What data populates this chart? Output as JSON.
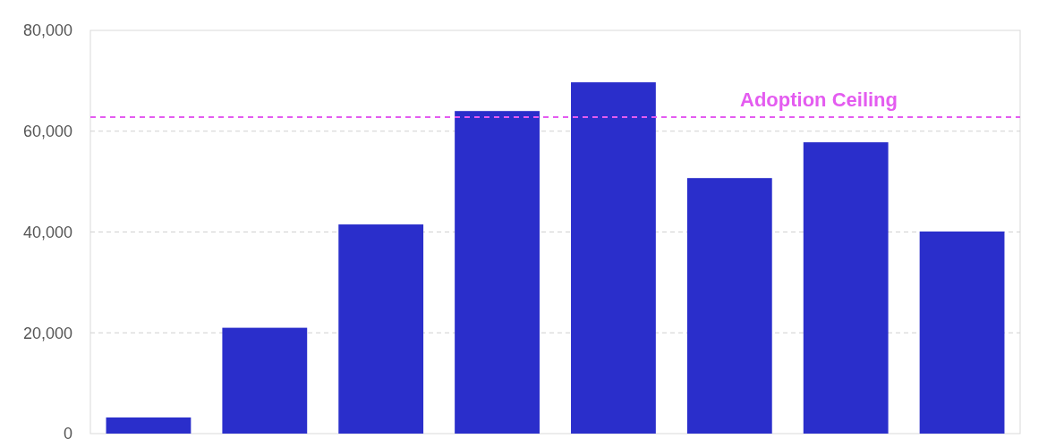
{
  "chart_data": {
    "type": "bar",
    "categories": [
      null,
      null,
      null,
      null,
      null,
      null,
      null,
      null
    ],
    "values": [
      3200,
      21000,
      41500,
      64000,
      69700,
      50700,
      57800,
      40100
    ],
    "color": "#2a2ecb",
    "ylim": [
      0,
      80000
    ],
    "yticks": [
      {
        "value": 0,
        "label": "0"
      },
      {
        "value": 20000,
        "label": "20,000"
      },
      {
        "value": 40000,
        "label": "40,000"
      },
      {
        "value": 60000,
        "label": "60,000"
      },
      {
        "value": 80000,
        "label": "80,000"
      }
    ],
    "grid": "y",
    "ref_lines": [
      {
        "axis": "y",
        "value": 62800,
        "label": "Adoption Ceiling",
        "color": "#e45cf0",
        "line_style": "dashed"
      }
    ]
  }
}
